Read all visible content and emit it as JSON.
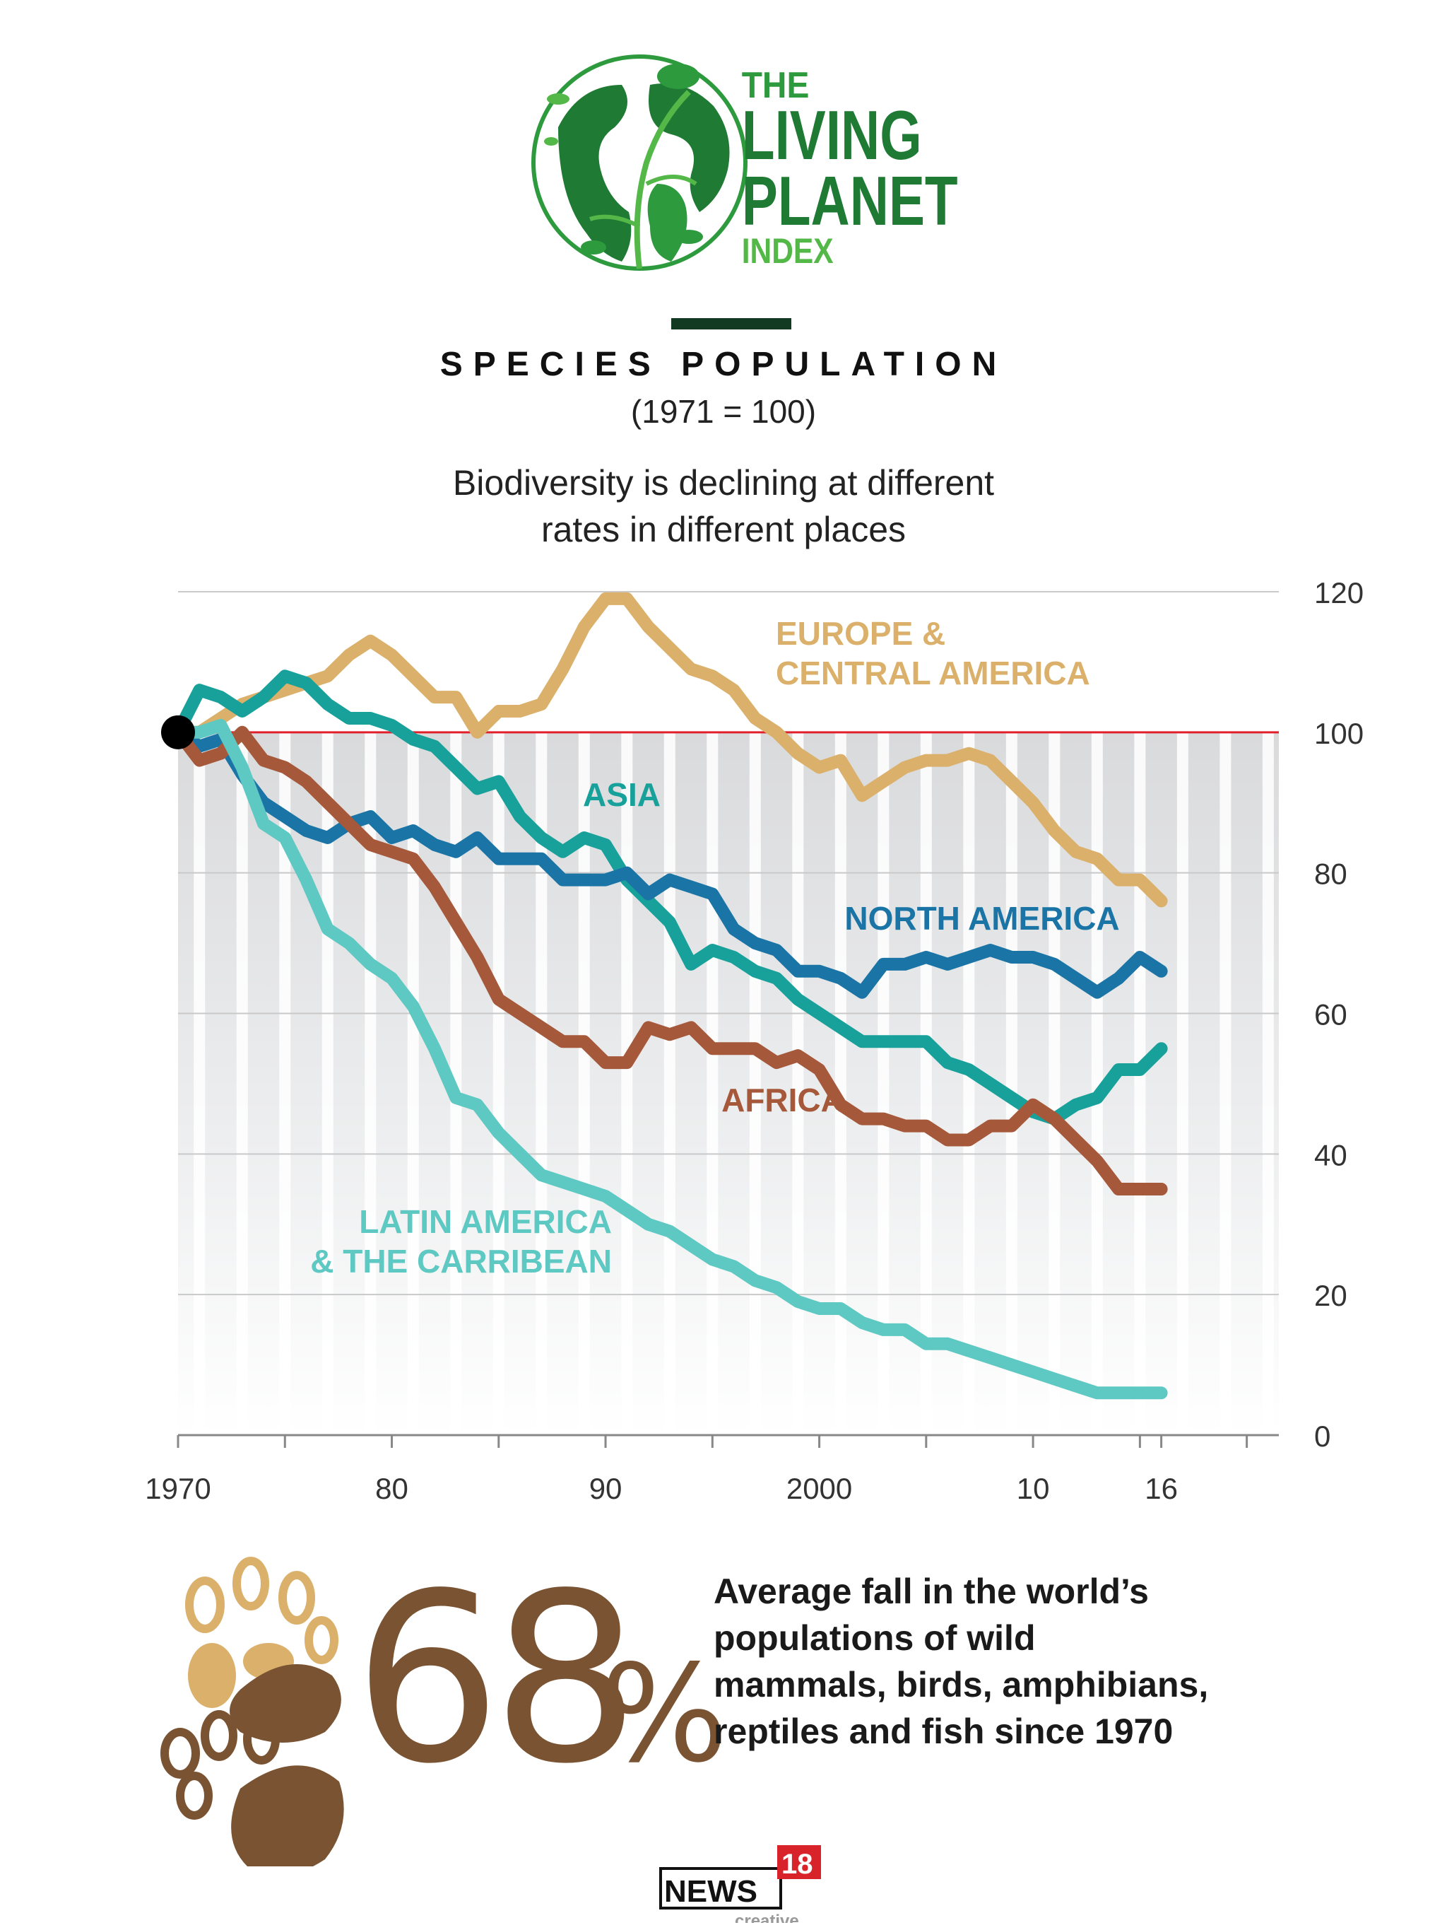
{
  "logo": {
    "line1": "THE",
    "line2": "LIVING",
    "line3": "PLANET",
    "line4": "INDEX"
  },
  "header": {
    "title": "SPECIES POPULATION",
    "subtitle": "(1971 = 100)",
    "description_lines": [
      "Biodiversity is declining at different",
      "rates in different places"
    ]
  },
  "chart_data": {
    "type": "line",
    "xlim": [
      1970,
      2021.5
    ],
    "ylim": [
      0,
      120
    ],
    "x_ticks": [
      1970,
      1980,
      1990,
      2000,
      2010,
      2016
    ],
    "x_tick_labels": [
      "1970",
      "80",
      "90",
      "2000",
      "10",
      "16"
    ],
    "y_ticks": [
      0,
      20,
      40,
      60,
      80,
      100,
      120
    ],
    "y_tick_labels": [
      "0",
      "20",
      "40",
      "60",
      "80",
      "100",
      "120"
    ],
    "y_axis_side": "right",
    "grid": true,
    "reference_line": {
      "y": 100,
      "color": "#e0202a"
    },
    "start_point": {
      "x": 1970,
      "y": 100
    },
    "series": [
      {
        "name": "EUROPE & CENTRAL AMERICA",
        "label_lines": [
          "EUROPE &",
          "CENTRAL AMERICA"
        ],
        "color": "#dbb06b",
        "x": [
          1970,
          1971,
          1972,
          1973,
          1974,
          1975,
          1976,
          1977,
          1978,
          1979,
          1980,
          1981,
          1982,
          1983,
          1984,
          1985,
          1986,
          1987,
          1988,
          1989,
          1990,
          1991,
          1992,
          1993,
          1994,
          1995,
          1996,
          1997,
          1998,
          1999,
          2000,
          2001,
          2002,
          2003,
          2004,
          2005,
          2006,
          2007,
          2008,
          2009,
          2010,
          2011,
          2012,
          2013,
          2014,
          2015,
          2016
        ],
        "y": [
          100,
          100,
          102,
          104,
          105,
          106,
          107,
          108,
          111,
          113,
          111,
          108,
          105,
          105,
          100,
          103,
          103,
          104,
          109,
          115,
          119,
          119,
          115,
          112,
          109,
          108,
          106,
          102,
          100,
          97,
          95,
          96,
          91,
          93,
          95,
          96,
          96,
          97,
          96,
          93,
          90,
          86,
          83,
          82,
          79,
          79,
          76
        ]
      },
      {
        "name": "ASIA",
        "label_lines": [
          "ASIA"
        ],
        "color": "#18a19b",
        "x": [
          1970,
          1971,
          1972,
          1973,
          1974,
          1975,
          1976,
          1977,
          1978,
          1979,
          1980,
          1981,
          1982,
          1983,
          1984,
          1985,
          1986,
          1987,
          1988,
          1989,
          1990,
          1991,
          1992,
          1993,
          1994,
          1995,
          1996,
          1997,
          1998,
          1999,
          2000,
          2001,
          2002,
          2003,
          2004,
          2005,
          2006,
          2007,
          2008,
          2009,
          2010,
          2011,
          2012,
          2013,
          2014,
          2015,
          2016
        ],
        "y": [
          100,
          106,
          105,
          103,
          105,
          108,
          107,
          104,
          102,
          102,
          101,
          99,
          98,
          95,
          92,
          93,
          88,
          85,
          83,
          85,
          84,
          79,
          76,
          73,
          67,
          69,
          68,
          66,
          65,
          62,
          60,
          58,
          56,
          56,
          56,
          56,
          53,
          52,
          50,
          48,
          46,
          45,
          47,
          48,
          52,
          52,
          55
        ]
      },
      {
        "name": "NORTH AMERICA",
        "label_lines": [
          "NORTH AMERICA"
        ],
        "color": "#1a75a6",
        "x": [
          1970,
          1971,
          1972,
          1973,
          1974,
          1975,
          1976,
          1977,
          1978,
          1979,
          1980,
          1981,
          1982,
          1983,
          1984,
          1985,
          1986,
          1987,
          1988,
          1989,
          1990,
          1991,
          1992,
          1993,
          1994,
          1995,
          1996,
          1997,
          1998,
          1999,
          2000,
          2001,
          2002,
          2003,
          2004,
          2005,
          2006,
          2007,
          2008,
          2009,
          2010,
          2011,
          2012,
          2013,
          2014,
          2015,
          2016
        ],
        "y": [
          100,
          98,
          99,
          94,
          90,
          88,
          86,
          85,
          87,
          88,
          85,
          86,
          84,
          83,
          85,
          82,
          82,
          82,
          79,
          79,
          79,
          80,
          77,
          79,
          78,
          77,
          72,
          70,
          69,
          66,
          66,
          65,
          63,
          67,
          67,
          68,
          67,
          68,
          69,
          68,
          68,
          67,
          65,
          63,
          65,
          68,
          66
        ]
      },
      {
        "name": "AFRICA",
        "label_lines": [
          "AFRICA"
        ],
        "color": "#a5583a",
        "x": [
          1970,
          1971,
          1972,
          1973,
          1974,
          1975,
          1976,
          1977,
          1978,
          1979,
          1980,
          1981,
          1982,
          1983,
          1984,
          1985,
          1986,
          1987,
          1988,
          1989,
          1990,
          1991,
          1992,
          1993,
          1994,
          1995,
          1996,
          1997,
          1998,
          1999,
          2000,
          2001,
          2002,
          2003,
          2004,
          2005,
          2006,
          2007,
          2008,
          2009,
          2010,
          2011,
          2012,
          2013,
          2014,
          2015,
          2016
        ],
        "y": [
          100,
          96,
          97,
          100,
          96,
          95,
          93,
          90,
          87,
          84,
          83,
          82,
          78,
          73,
          68,
          62,
          60,
          58,
          56,
          56,
          53,
          53,
          58,
          57,
          58,
          55,
          55,
          55,
          53,
          54,
          52,
          47,
          45,
          45,
          44,
          44,
          42,
          42,
          44,
          44,
          47,
          45,
          42,
          39,
          35,
          35,
          35
        ]
      },
      {
        "name": "LATIN AMERICA & THE CARRIBEAN",
        "label_lines": [
          "LATIN AMERICA",
          "& THE CARRIBEAN"
        ],
        "color": "#5ec8c2",
        "x": [
          1970,
          1971,
          1972,
          1973,
          1974,
          1975,
          1976,
          1977,
          1978,
          1979,
          1980,
          1981,
          1982,
          1983,
          1984,
          1985,
          1986,
          1987,
          1988,
          1989,
          1990,
          1991,
          1992,
          1993,
          1994,
          1995,
          1996,
          1997,
          1998,
          1999,
          2000,
          2001,
          2002,
          2003,
          2004,
          2005,
          2006,
          2007,
          2008,
          2009,
          2010,
          2011,
          2012,
          2013,
          2014,
          2015,
          2016
        ],
        "y": [
          100,
          100,
          101,
          95,
          87,
          85,
          79,
          72,
          70,
          67,
          65,
          61,
          55,
          48,
          47,
          43,
          40,
          37,
          36,
          35,
          34,
          32,
          30,
          29,
          27,
          25,
          24,
          22,
          21,
          19,
          18,
          18,
          16,
          15,
          15,
          13,
          13,
          12,
          11,
          10,
          9,
          8,
          7,
          6,
          6,
          6,
          6
        ]
      }
    ]
  },
  "stat": {
    "number": "68",
    "percent": "%",
    "text_lines": [
      "Average fall in the world’s",
      "populations of wild",
      "mammals, birds, amphibians,",
      "reptiles and fish since 1970"
    ]
  },
  "footer": {
    "brand": "NEWS",
    "brand_number": "18",
    "sub": "creative"
  }
}
